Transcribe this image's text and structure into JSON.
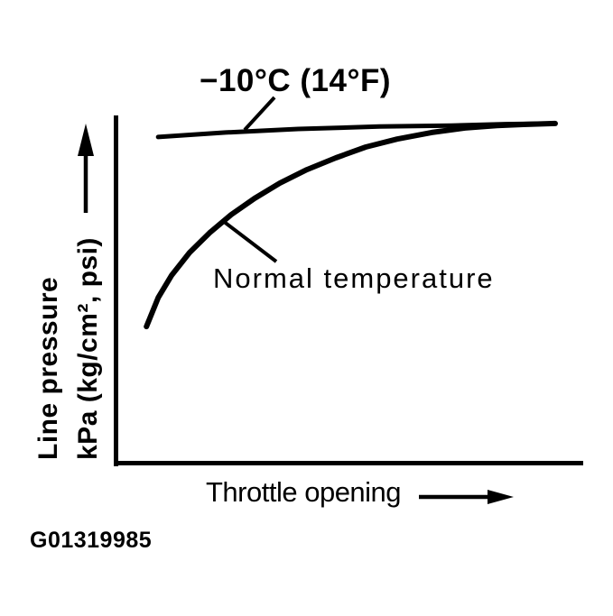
{
  "figure": {
    "id_code": "G01319985",
    "background_color": "#ffffff",
    "ink_color": "#000000"
  },
  "chart_data": {
    "type": "line",
    "title": "",
    "xlabel": "Throttle opening",
    "ylabel": [
      "Line pressure",
      "kPa (kg/cm², psi)"
    ],
    "axis_style": "qualitative schematic: no tick marks or numeric scale; arrows on both axis labels indicate increasing direction",
    "legend_position": "inline annotations with leader lines",
    "grid": false,
    "series": [
      {
        "name": "−10°C (14°F)",
        "description": "cold-fluid curve: line pressure is high and nearly constant over the whole throttle range",
        "points_norm": [
          [
            0.093,
            0.938
          ],
          [
            0.237,
            0.951
          ],
          [
            0.392,
            0.961
          ],
          [
            0.566,
            0.968
          ],
          [
            0.72,
            0.971
          ],
          [
            0.836,
            0.975
          ],
          [
            0.942,
            0.977
          ]
        ]
      },
      {
        "name": "Normal temperature",
        "description": "warm-fluid curve: pressure rises steeply at small throttle openings, then levels off and converges with the cold curve at large throttle opening",
        "points_norm": [
          [
            0.068,
            0.392
          ],
          [
            0.093,
            0.475
          ],
          [
            0.122,
            0.54
          ],
          [
            0.16,
            0.605
          ],
          [
            0.203,
            0.662
          ],
          [
            0.249,
            0.714
          ],
          [
            0.299,
            0.761
          ],
          [
            0.353,
            0.805
          ],
          [
            0.411,
            0.844
          ],
          [
            0.473,
            0.878
          ],
          [
            0.537,
            0.909
          ],
          [
            0.604,
            0.932
          ],
          [
            0.678,
            0.951
          ],
          [
            0.749,
            0.964
          ],
          [
            0.817,
            0.971
          ],
          [
            0.874,
            0.974
          ],
          [
            0.942,
            0.977
          ]
        ]
      }
    ]
  }
}
